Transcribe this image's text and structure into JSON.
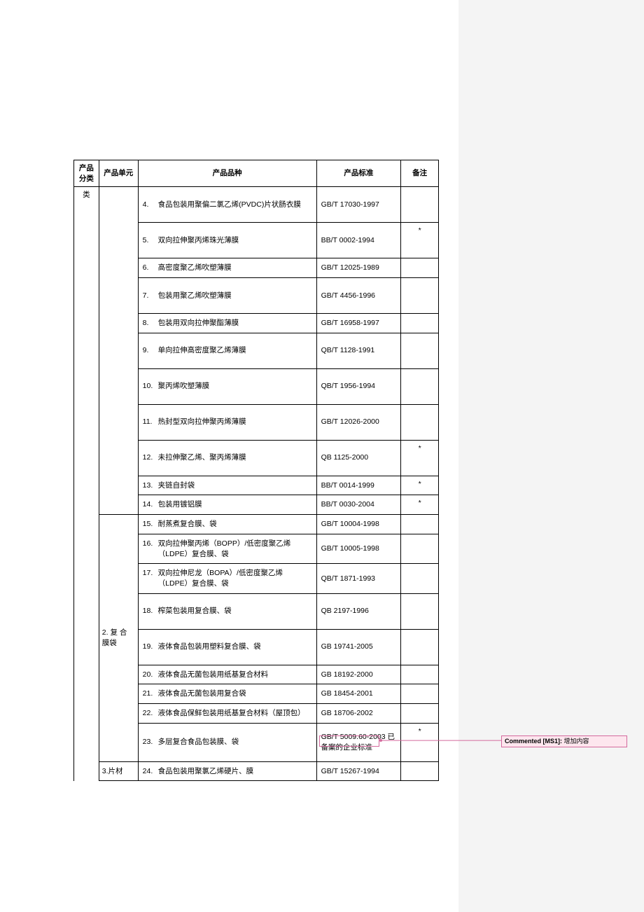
{
  "header": {
    "col_category": "产品分类",
    "col_unit": "产品单元",
    "col_variety": "产品品种",
    "col_standard": "产品标准",
    "col_note": "备注"
  },
  "cat_cell": "类",
  "unit2": "2. 复 合 膜袋",
  "unit3": "3.片材",
  "rows": [
    {
      "n": "4.",
      "v": "食品包装用聚偏二氯乙烯(PVDC)片状肠衣膜",
      "s": "GB/T 17030-1997",
      "note": ""
    },
    {
      "n": "5.",
      "v": "双向拉伸聚丙烯珠光薄膜",
      "s": "BB/T 0002-1994",
      "note": "*"
    },
    {
      "n": "6.",
      "v": "高密度聚乙烯吹塑薄膜",
      "s": "GB/T 12025-1989",
      "note": ""
    },
    {
      "n": "7.",
      "v": "包装用聚乙烯吹塑薄膜",
      "s": "GB/T 4456-1996",
      "note": ""
    },
    {
      "n": "8.",
      "v": "包装用双向拉伸聚酯薄膜",
      "s": "GB/T 16958-1997",
      "note": ""
    },
    {
      "n": "9.",
      "v": "单向拉伸高密度聚乙烯薄膜",
      "s": "QB/T 1128-1991",
      "note": ""
    },
    {
      "n": "10.",
      "v": "聚丙烯吹塑薄膜",
      "s": "QB/T 1956-1994",
      "note": ""
    },
    {
      "n": "11.",
      "v": "热封型双向拉伸聚丙烯薄膜",
      "s": "GB/T 12026-2000",
      "note": ""
    },
    {
      "n": "12.",
      "v": "未拉伸聚乙烯、聚丙烯薄膜",
      "s": "QB 1125-2000",
      "note": "*"
    },
    {
      "n": "13.",
      "v": "夹链自封袋",
      "s": "BB/T 0014-1999",
      "note": "*"
    },
    {
      "n": "14.",
      "v": "包装用镀铝膜",
      "s": "BB/T 0030-2004",
      "note": "*"
    },
    {
      "n": "15.",
      "v": "耐蒸煮复合膜、袋",
      "s": "GB/T 10004-1998",
      "note": ""
    },
    {
      "n": "16.",
      "v": "双向拉伸聚丙烯（BOPP）/低密度聚乙烯（LDPE）复合膜、袋",
      "s": "GB/T 10005-1998",
      "note": ""
    },
    {
      "n": "17.",
      "v": "双向拉伸尼龙（BOPA）/低密度聚乙烯（LDPE）复合膜、袋",
      "s": "QB/T 1871-1993",
      "note": ""
    },
    {
      "n": "18.",
      "v": "榨菜包装用复合膜、袋",
      "s": "QB 2197-1996",
      "note": ""
    },
    {
      "n": "19.",
      "v": "液体食品包装用塑料复合膜、袋",
      "s": "GB 19741-2005",
      "note": ""
    },
    {
      "n": "20.",
      "v": "液体食品无菌包装用纸基复合材料",
      "s": "GB 18192-2000",
      "note": ""
    },
    {
      "n": "21.",
      "v": "液体食品无菌包装用复合袋",
      "s": "GB 18454-2001",
      "note": ""
    },
    {
      "n": "22.",
      "v": "液体食品保鲜包装用纸基复合材料（屋顶包）",
      "s": "GB 18706-2002",
      "note": ""
    },
    {
      "n": "23.",
      "v": "多层复合食品包装膜、袋",
      "s": "GB/T 5009.60-2003 已备案的企业标准",
      "note": "*"
    },
    {
      "n": "24.",
      "v": "食品包装用聚氯乙烯硬片、膜",
      "s": "GB/T 15267-1994",
      "note": ""
    }
  ],
  "comment": {
    "label": "Commented [MS1]:",
    "text": "增加内容"
  },
  "colors": {
    "comment_bg": "#fde6ee",
    "comment_border": "#d46a9d",
    "right_pane_bg": "#f4f4f4"
  }
}
